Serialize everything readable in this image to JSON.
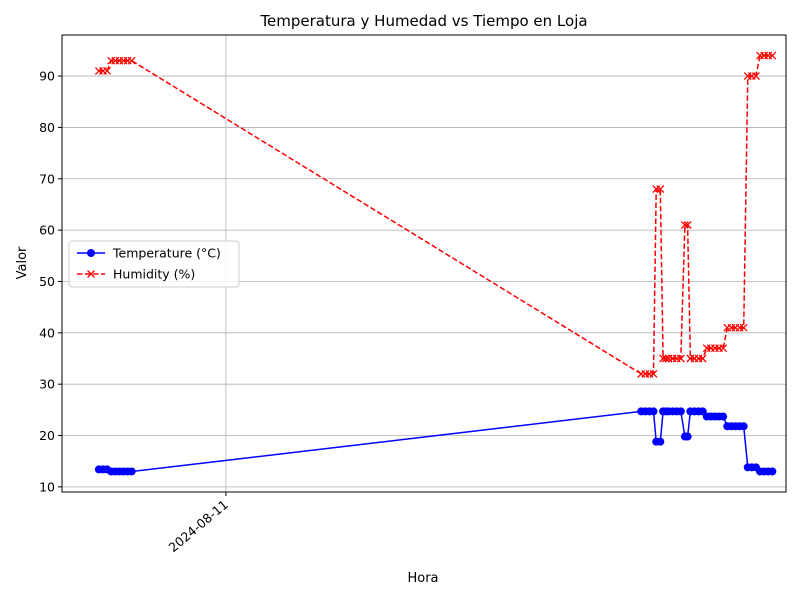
{
  "chart_data": {
    "type": "line",
    "title": "Temperatura y Humedad vs Tiempo en Loja",
    "xlabel": "Hora",
    "ylabel": "Valor",
    "x_ticks": [
      {
        "x": 11.0,
        "label": "2024-08-11"
      }
    ],
    "y_ticks": [
      10,
      20,
      30,
      40,
      50,
      60,
      70,
      80,
      90
    ],
    "xlim": [
      9.8,
      15.1
    ],
    "ylim": [
      9,
      98
    ],
    "grid": true,
    "legend_position": "center-left",
    "series": [
      {
        "name": "Temperature (°C)",
        "color": "#0000ff",
        "linestyle": "solid",
        "marker": "circle",
        "x": [
          10.07,
          10.1,
          10.13,
          10.16,
          10.19,
          10.22,
          10.25,
          10.28,
          10.31,
          14.04,
          14.07,
          14.1,
          14.13,
          14.15,
          14.18,
          14.2,
          14.22,
          14.24,
          14.27,
          14.3,
          14.33,
          14.36,
          14.38,
          14.4,
          14.43,
          14.46,
          14.49,
          14.52,
          14.55,
          14.58,
          14.61,
          14.64,
          14.67,
          14.7,
          14.73,
          14.76,
          14.79,
          14.82,
          14.85,
          14.88,
          14.91,
          14.94,
          14.97,
          15.0
        ],
        "y": [
          13.4,
          13.4,
          13.4,
          13.0,
          13.0,
          13.0,
          13.0,
          13.0,
          13.0,
          24.7,
          24.7,
          24.7,
          24.7,
          18.8,
          18.8,
          24.7,
          24.7,
          24.7,
          24.7,
          24.7,
          24.7,
          19.8,
          19.8,
          24.7,
          24.7,
          24.7,
          24.7,
          23.7,
          23.7,
          23.7,
          23.7,
          23.7,
          21.8,
          21.8,
          21.8,
          21.8,
          21.8,
          13.8,
          13.8,
          13.8,
          13.0,
          13.0,
          13.0,
          13.0
        ]
      },
      {
        "name": "Humidity (%)",
        "color": "#ff0000",
        "linestyle": "dashed",
        "marker": "x",
        "x": [
          10.07,
          10.1,
          10.13,
          10.16,
          10.19,
          10.22,
          10.25,
          10.28,
          10.31,
          14.04,
          14.07,
          14.1,
          14.13,
          14.15,
          14.18,
          14.2,
          14.22,
          14.24,
          14.27,
          14.3,
          14.33,
          14.36,
          14.38,
          14.4,
          14.43,
          14.46,
          14.49,
          14.52,
          14.55,
          14.58,
          14.61,
          14.64,
          14.67,
          14.7,
          14.73,
          14.76,
          14.79,
          14.82,
          14.85,
          14.88,
          14.91,
          14.94,
          14.97,
          15.0
        ],
        "y": [
          91,
          91,
          91,
          93,
          93,
          93,
          93,
          93,
          93,
          32,
          32,
          32,
          32,
          68,
          68,
          35,
          35,
          35,
          35,
          35,
          35,
          61,
          61,
          35,
          35,
          35,
          35,
          37,
          37,
          37,
          37,
          37,
          41,
          41,
          41,
          41,
          41,
          90,
          90,
          90,
          94,
          94,
          94,
          94
        ]
      }
    ]
  }
}
